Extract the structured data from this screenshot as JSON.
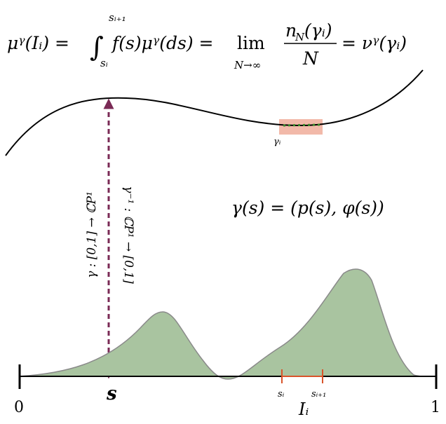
{
  "equation": {
    "lhs": "μᵞ(Iᵢ) =",
    "integral": "∫",
    "upper": "sᵢ₊₁",
    "lower": "sᵢ",
    "integrand": "f(s)μᵞ(ds) =",
    "lim": "lim",
    "lim_sub": "N→∞",
    "numerator_n": "n",
    "numerator_sub": "N",
    "numerator_arg": "(γᵢ)",
    "denominator": "N",
    "rhs": "= νᵞ(γᵢ)"
  },
  "curve_label": "γᵢ",
  "gamma_def": "γ(s) = (p(s), φ(s))",
  "map_forward": "γ : [0,1] → ℂP¹",
  "map_inverse": "γ⁻¹ : ℂP¹ → [0,1]",
  "axis": {
    "start": "0",
    "end": "1",
    "point": "s",
    "interval_start": "sᵢ",
    "interval_end": "sᵢ₊₁",
    "interval": "Iᵢ"
  }
}
